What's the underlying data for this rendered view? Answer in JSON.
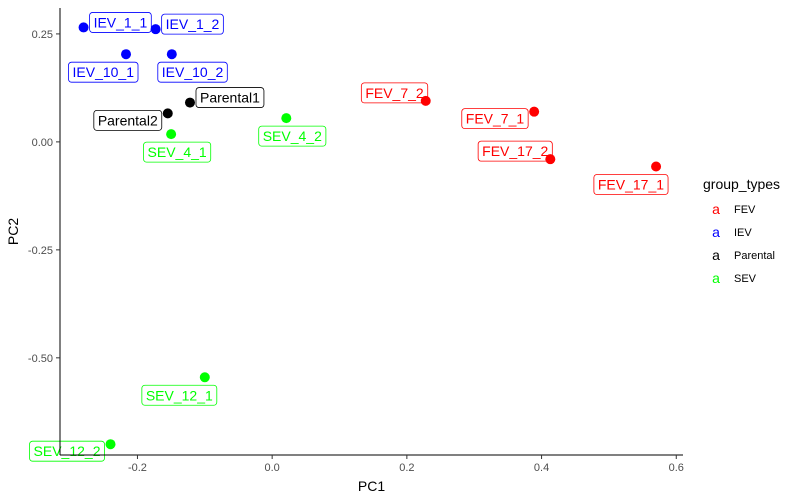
{
  "chart_data": {
    "type": "scatter",
    "xlabel": "PC1",
    "ylabel": "PC2",
    "xlim": [
      -0.315,
      0.61
    ],
    "ylim": [
      -0.725,
      0.31
    ],
    "x_ticks": [
      -0.2,
      0.0,
      0.2,
      0.4,
      0.6
    ],
    "x_tick_labels": [
      "-0.2",
      "0.0",
      "0.2",
      "0.4",
      "0.6"
    ],
    "y_ticks": [
      0.25,
      0.0,
      -0.25,
      -0.5
    ],
    "y_tick_labels": [
      "0.25",
      "0.00",
      "-0.25",
      "-0.50"
    ],
    "grid": false,
    "legend": {
      "title": "group_types",
      "position": "right",
      "key_glyph": "a",
      "entries": [
        {
          "name": "FEV",
          "color": "#ff0000"
        },
        {
          "name": "IEV",
          "color": "#0000ff"
        },
        {
          "name": "Parental",
          "color": "#000000"
        },
        {
          "name": "SEV",
          "color": "#00ff00"
        }
      ]
    },
    "points": [
      {
        "label": "IEV_1_1",
        "group": "IEV",
        "x": -0.28,
        "y": 0.265,
        "label_anchor": "right"
      },
      {
        "label": "IEV_1_2",
        "group": "IEV",
        "x": -0.173,
        "y": 0.261,
        "label_anchor": "right"
      },
      {
        "label": "IEV_10_1",
        "group": "IEV",
        "x": -0.217,
        "y": 0.203,
        "label_anchor": "below-left"
      },
      {
        "label": "IEV_10_2",
        "group": "IEV",
        "x": -0.149,
        "y": 0.203,
        "label_anchor": "below-right"
      },
      {
        "label": "Parental1",
        "group": "Parental",
        "x": -0.122,
        "y": 0.091,
        "label_anchor": "right"
      },
      {
        "label": "Parental2",
        "group": "Parental",
        "x": -0.155,
        "y": 0.066,
        "label_anchor": "left"
      },
      {
        "label": "SEV_4_1",
        "group": "SEV",
        "x": -0.15,
        "y": 0.018,
        "label_anchor": "below"
      },
      {
        "label": "SEV_4_2",
        "group": "SEV",
        "x": 0.021,
        "y": 0.055,
        "label_anchor": "below"
      },
      {
        "label": "SEV_12_1",
        "group": "SEV",
        "x": -0.1,
        "y": -0.545,
        "label_anchor": "below-left"
      },
      {
        "label": "SEV_12_2",
        "group": "SEV",
        "x": -0.24,
        "y": -0.7,
        "label_anchor": "left"
      },
      {
        "label": "FEV_7_2",
        "group": "FEV",
        "x": 0.228,
        "y": 0.095,
        "label_anchor": "above-left"
      },
      {
        "label": "FEV_7_1",
        "group": "FEV",
        "x": 0.389,
        "y": 0.07,
        "label_anchor": "left"
      },
      {
        "label": "FEV_17_2",
        "group": "FEV",
        "x": 0.413,
        "y": -0.04,
        "label_anchor": "above-left"
      },
      {
        "label": "FEV_17_1",
        "group": "FEV",
        "x": 0.57,
        "y": -0.057,
        "label_anchor": "below-left"
      }
    ]
  }
}
